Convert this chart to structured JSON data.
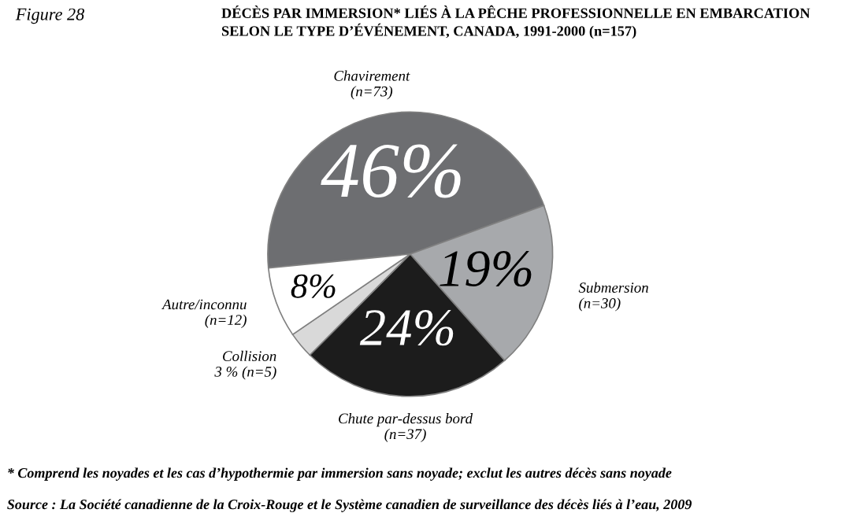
{
  "chart_data": {
    "type": "pie",
    "title": "DÉCÈS PAR IMMERSION* LIÉS À LA PÊCHE PROFESSIONNELLE EN EMBARCATION\nSELON LE TYPE D’ÉVÉNEMENT, CANADA, 1991-2000 (n=157)",
    "categories": [
      "Chavirement\n(n=73)",
      "Submersion\n(n=30)",
      "Chute par-dessus bord\n(n=37)",
      "Collision\n3 % (n=5)",
      "Autre/inconnu\n(n=12)"
    ],
    "values": [
      46,
      19,
      24,
      3,
      8
    ],
    "value_labels": [
      "46%",
      "19%",
      "24%",
      null,
      "8%"
    ],
    "colors": [
      "#6d6e71",
      "#a7a9ac",
      "#1c1c1c",
      "#d9d9d9",
      "#ffffff"
    ],
    "legend": false,
    "annotations": [
      "Figure 28",
      "* Comprend les noyades et les cas d’hypothermie par immersion sans noyade; exclut les autres décès sans noyade",
      "Source : La Société canadienne de la Croix-Rouge et le Système canadien de surveillance des décès liés à l’eau, 2009"
    ]
  }
}
